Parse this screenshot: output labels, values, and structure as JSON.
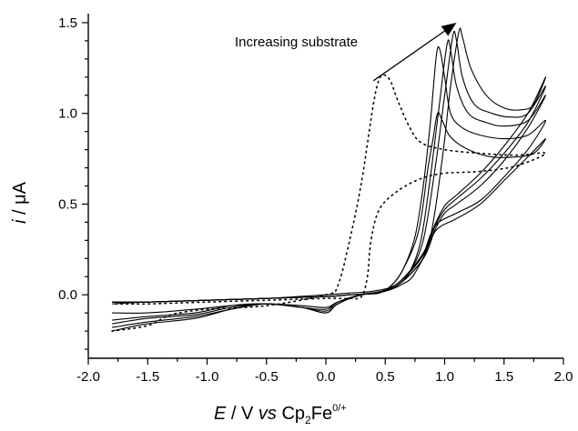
{
  "chart_data": {
    "type": "line",
    "title": "",
    "xlabel": {
      "italic_part": "E",
      "rest": " / V ",
      "vs": "vs",
      "species": " Cp",
      "subscript": "2",
      "species_tail": "Fe",
      "superscript": "0/+"
    },
    "ylabel": {
      "italic_part": "i",
      "rest": " / μA"
    },
    "xlim": [
      -2.0,
      2.0
    ],
    "ylim": [
      -0.35,
      1.55
    ],
    "x_ticks": [
      -2.0,
      -1.5,
      -1.0,
      -0.5,
      0.0,
      0.5,
      1.0,
      1.5,
      2.0
    ],
    "x_tick_labels": [
      "-2.0",
      "-1.5",
      "-1.0",
      "-0.5",
      "0.0",
      "0.5",
      "1.0",
      "1.5",
      "2.0"
    ],
    "y_ticks": [
      0.0,
      0.5,
      1.0,
      1.5
    ],
    "y_tick_labels": [
      "0.0",
      "0.5",
      "1.0",
      "1.5"
    ],
    "grid": false,
    "annotation": {
      "text": "Increasing substrate",
      "arrow_from": [
        0.4,
        1.18
      ],
      "arrow_to": [
        1.1,
        1.5
      ]
    },
    "series": [
      {
        "style": "dotted",
        "forward": [
          [
            -1.8,
            -0.2
          ],
          [
            -1.5,
            -0.17
          ],
          [
            -1.3,
            -0.11
          ],
          [
            -1.0,
            -0.08
          ],
          [
            -0.5,
            -0.06
          ],
          [
            0.0,
            0.0
          ],
          [
            0.1,
            0.05
          ],
          [
            0.2,
            0.3
          ],
          [
            0.3,
            0.62
          ],
          [
            0.4,
            1.05
          ],
          [
            0.45,
            1.19
          ],
          [
            0.5,
            1.21
          ],
          [
            0.55,
            1.17
          ],
          [
            0.6,
            1.08
          ],
          [
            0.7,
            0.93
          ],
          [
            0.8,
            0.84
          ],
          [
            1.0,
            0.8
          ],
          [
            1.3,
            0.78
          ],
          [
            1.6,
            0.77
          ],
          [
            1.85,
            0.78
          ]
        ],
        "reverse": [
          [
            1.85,
            0.78
          ],
          [
            1.6,
            0.71
          ],
          [
            1.3,
            0.68
          ],
          [
            1.0,
            0.67
          ],
          [
            0.8,
            0.64
          ],
          [
            0.6,
            0.57
          ],
          [
            0.45,
            0.47
          ],
          [
            0.38,
            0.3
          ],
          [
            0.35,
            0.1
          ],
          [
            0.3,
            -0.01
          ],
          [
            0.2,
            -0.02
          ],
          [
            0.0,
            -0.02
          ],
          [
            -0.5,
            -0.03
          ],
          [
            -1.0,
            -0.04
          ],
          [
            -1.5,
            -0.05
          ],
          [
            -1.8,
            -0.05
          ]
        ]
      },
      {
        "style": "solid",
        "forward": [
          [
            -1.8,
            -0.14
          ],
          [
            -1.5,
            -0.12
          ],
          [
            -1.1,
            -0.1
          ],
          [
            -0.8,
            -0.06
          ],
          [
            -0.5,
            -0.05
          ],
          [
            -0.2,
            -0.07
          ],
          [
            0.0,
            -0.08
          ],
          [
            0.1,
            -0.04
          ],
          [
            0.3,
            0.0
          ],
          [
            0.45,
            0.01
          ],
          [
            0.55,
            0.05
          ],
          [
            0.65,
            0.14
          ],
          [
            0.75,
            0.32
          ],
          [
            0.82,
            0.6
          ],
          [
            0.88,
            0.95
          ],
          [
            0.93,
            1.32
          ],
          [
            0.96,
            1.35
          ],
          [
            1.0,
            1.2
          ],
          [
            1.05,
            1.0
          ],
          [
            1.15,
            0.92
          ],
          [
            1.3,
            0.88
          ],
          [
            1.5,
            0.86
          ],
          [
            1.7,
            0.88
          ],
          [
            1.85,
            0.96
          ]
        ],
        "reverse": [
          [
            1.85,
            0.96
          ],
          [
            1.7,
            0.8
          ],
          [
            1.5,
            0.65
          ],
          [
            1.3,
            0.52
          ],
          [
            1.1,
            0.45
          ],
          [
            0.95,
            0.4
          ],
          [
            0.88,
            0.33
          ],
          [
            0.8,
            0.2
          ],
          [
            0.6,
            0.06
          ],
          [
            0.4,
            0.02
          ],
          [
            0.2,
            0.01
          ],
          [
            0.0,
            0.0
          ],
          [
            -0.5,
            -0.02
          ],
          [
            -1.0,
            -0.03
          ],
          [
            -1.5,
            -0.04
          ],
          [
            -1.8,
            -0.05
          ]
        ]
      },
      {
        "style": "solid",
        "forward": [
          [
            -1.8,
            -0.16
          ],
          [
            -1.5,
            -0.13
          ],
          [
            -1.1,
            -0.11
          ],
          [
            -0.8,
            -0.07
          ],
          [
            -0.5,
            -0.05
          ],
          [
            -0.2,
            -0.07
          ],
          [
            0.0,
            -0.09
          ],
          [
            0.1,
            -0.04
          ],
          [
            0.3,
            0.0
          ],
          [
            0.45,
            0.01
          ],
          [
            0.55,
            0.05
          ],
          [
            0.65,
            0.14
          ],
          [
            0.78,
            0.35
          ],
          [
            0.86,
            0.7
          ],
          [
            0.9,
            0.85
          ],
          [
            0.94,
            1.0
          ],
          [
            0.98,
            0.96
          ],
          [
            1.05,
            0.87
          ],
          [
            1.2,
            0.8
          ],
          [
            1.4,
            0.76
          ],
          [
            1.6,
            0.76
          ],
          [
            1.75,
            0.78
          ],
          [
            1.85,
            0.86
          ]
        ],
        "reverse": [
          [
            1.85,
            0.86
          ],
          [
            1.7,
            0.76
          ],
          [
            1.5,
            0.63
          ],
          [
            1.3,
            0.5
          ],
          [
            1.1,
            0.42
          ],
          [
            0.95,
            0.37
          ],
          [
            0.88,
            0.3
          ],
          [
            0.8,
            0.18
          ],
          [
            0.6,
            0.05
          ],
          [
            0.4,
            0.01
          ],
          [
            0.2,
            0.0
          ],
          [
            0.0,
            -0.01
          ],
          [
            -0.5,
            -0.02
          ],
          [
            -1.0,
            -0.03
          ],
          [
            -1.5,
            -0.04
          ],
          [
            -1.8,
            -0.04
          ]
        ]
      },
      {
        "style": "solid",
        "forward": [
          [
            -1.8,
            -0.1
          ],
          [
            -1.5,
            -0.1
          ],
          [
            -1.1,
            -0.08
          ],
          [
            -0.8,
            -0.06
          ],
          [
            -0.5,
            -0.05
          ],
          [
            -0.2,
            -0.06
          ],
          [
            0.0,
            -0.07
          ],
          [
            0.1,
            -0.04
          ],
          [
            0.3,
            0.0
          ],
          [
            0.5,
            0.02
          ],
          [
            0.6,
            0.05
          ],
          [
            0.7,
            0.12
          ],
          [
            0.8,
            0.3
          ],
          [
            0.88,
            0.65
          ],
          [
            0.95,
            1.02
          ],
          [
            1.02,
            1.38
          ],
          [
            1.05,
            1.35
          ],
          [
            1.1,
            1.15
          ],
          [
            1.2,
            1.0
          ],
          [
            1.35,
            0.95
          ],
          [
            1.5,
            0.93
          ],
          [
            1.7,
            0.96
          ],
          [
            1.85,
            1.1
          ]
        ],
        "reverse": [
          [
            1.85,
            1.1
          ],
          [
            1.7,
            0.92
          ],
          [
            1.5,
            0.74
          ],
          [
            1.3,
            0.6
          ],
          [
            1.1,
            0.5
          ],
          [
            1.0,
            0.45
          ],
          [
            0.92,
            0.36
          ],
          [
            0.82,
            0.2
          ],
          [
            0.6,
            0.05
          ],
          [
            0.4,
            0.01
          ],
          [
            0.2,
            0.0
          ],
          [
            0.0,
            -0.01
          ],
          [
            -0.5,
            -0.02
          ],
          [
            -1.0,
            -0.03
          ],
          [
            -1.5,
            -0.04
          ],
          [
            -1.8,
            -0.04
          ]
        ]
      },
      {
        "style": "solid",
        "forward": [
          [
            -1.8,
            -0.18
          ],
          [
            -1.5,
            -0.15
          ],
          [
            -1.1,
            -0.12
          ],
          [
            -0.8,
            -0.08
          ],
          [
            -0.5,
            -0.05
          ],
          [
            -0.2,
            -0.07
          ],
          [
            0.0,
            -0.1
          ],
          [
            0.1,
            -0.05
          ],
          [
            0.3,
            0.0
          ],
          [
            0.5,
            0.02
          ],
          [
            0.6,
            0.05
          ],
          [
            0.7,
            0.12
          ],
          [
            0.82,
            0.3
          ],
          [
            0.92,
            0.7
          ],
          [
            1.0,
            1.1
          ],
          [
            1.07,
            1.43
          ],
          [
            1.1,
            1.4
          ],
          [
            1.15,
            1.2
          ],
          [
            1.25,
            1.05
          ],
          [
            1.4,
            1.0
          ],
          [
            1.55,
            0.98
          ],
          [
            1.7,
            1.0
          ],
          [
            1.85,
            1.15
          ]
        ],
        "reverse": [
          [
            1.85,
            1.15
          ],
          [
            1.7,
            0.95
          ],
          [
            1.5,
            0.78
          ],
          [
            1.3,
            0.64
          ],
          [
            1.1,
            0.53
          ],
          [
            1.0,
            0.47
          ],
          [
            0.92,
            0.38
          ],
          [
            0.82,
            0.22
          ],
          [
            0.6,
            0.06
          ],
          [
            0.4,
            0.01
          ],
          [
            0.2,
            0.0
          ],
          [
            0.0,
            -0.01
          ],
          [
            -0.5,
            -0.02
          ],
          [
            -1.0,
            -0.03
          ],
          [
            -1.5,
            -0.04
          ],
          [
            -1.8,
            -0.04
          ]
        ]
      },
      {
        "style": "solid",
        "forward": [
          [
            -1.8,
            -0.2
          ],
          [
            -1.5,
            -0.16
          ],
          [
            -1.1,
            -0.13
          ],
          [
            -0.8,
            -0.08
          ],
          [
            -0.5,
            -0.05
          ],
          [
            -0.2,
            -0.07
          ],
          [
            0.0,
            -0.1
          ],
          [
            0.1,
            -0.05
          ],
          [
            0.3,
            0.0
          ],
          [
            0.5,
            0.02
          ],
          [
            0.65,
            0.06
          ],
          [
            0.75,
            0.12
          ],
          [
            0.88,
            0.32
          ],
          [
            0.98,
            0.75
          ],
          [
            1.05,
            1.15
          ],
          [
            1.12,
            1.45
          ],
          [
            1.15,
            1.42
          ],
          [
            1.22,
            1.25
          ],
          [
            1.35,
            1.1
          ],
          [
            1.5,
            1.03
          ],
          [
            1.65,
            1.02
          ],
          [
            1.75,
            1.05
          ],
          [
            1.85,
            1.2
          ]
        ],
        "reverse": [
          [
            1.85,
            1.2
          ],
          [
            1.7,
            1.0
          ],
          [
            1.5,
            0.82
          ],
          [
            1.3,
            0.67
          ],
          [
            1.1,
            0.55
          ],
          [
            1.0,
            0.49
          ],
          [
            0.92,
            0.39
          ],
          [
            0.82,
            0.23
          ],
          [
            0.6,
            0.06
          ],
          [
            0.4,
            0.01
          ],
          [
            0.2,
            0.0
          ],
          [
            0.0,
            -0.01
          ],
          [
            -0.5,
            -0.02
          ],
          [
            -1.0,
            -0.03
          ],
          [
            -1.5,
            -0.04
          ],
          [
            -1.8,
            -0.04
          ]
        ]
      }
    ]
  }
}
